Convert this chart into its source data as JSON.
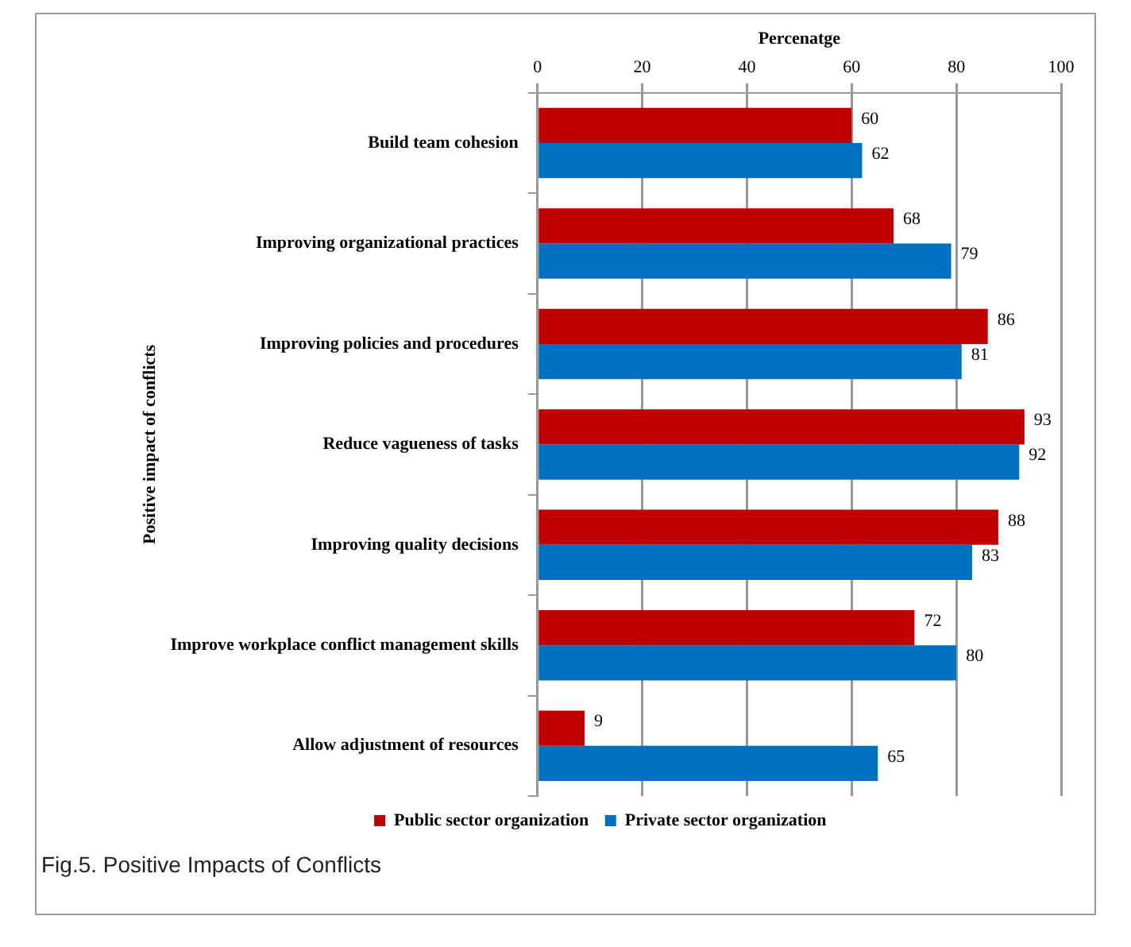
{
  "chart_data": {
    "type": "bar",
    "orientation": "horizontal",
    "xlabel": "Percenatge",
    "ylabel": "Positive impact of conflicts",
    "categories": [
      "Build team cohesion",
      "Improving organizational practices",
      "Improving policies and procedures",
      "Reduce vagueness of tasks",
      "Improving quality decisions",
      "Improve workplace conflict management skills",
      "Allow adjustment of resources"
    ],
    "series": [
      {
        "name": "Public sector organization",
        "color": "#c00000",
        "values": [
          60,
          68,
          86,
          93,
          88,
          72,
          9
        ]
      },
      {
        "name": "Private sector organization",
        "color": "#0070c0",
        "values": [
          62,
          79,
          81,
          92,
          83,
          80,
          65
        ]
      }
    ],
    "xlim": [
      0,
      100
    ],
    "xticks": [
      0,
      20,
      40,
      60,
      80,
      100
    ],
    "grid": "x",
    "legend": "bottom",
    "data_labels": true,
    "annotations": [
      "Fig.5. Positive Impacts of Conflicts"
    ]
  }
}
